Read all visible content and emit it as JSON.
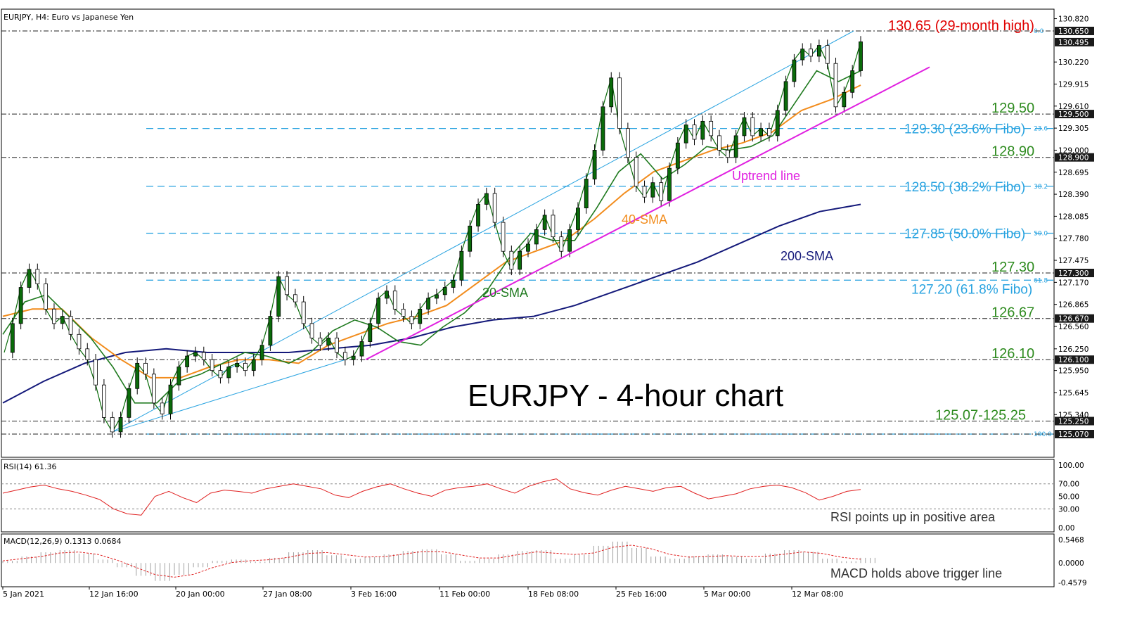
{
  "header": {
    "symbol_line": "EURJPY, H4:  Euro vs Japanese Yen",
    "chart_title": "EURJPY - 4-hour chart"
  },
  "colors": {
    "price_candle": "#0a6b0a",
    "sma20": "#1f7a1f",
    "sma40": "#f28c1c",
    "sma200": "#14197a",
    "uptrend": "#e020e0",
    "channel": "#29a3e0",
    "fibo": "#29a3e0",
    "level_label": "#2e8b1f",
    "high_label": "#e00000",
    "rsi": "#e02020",
    "macd_signal": "#e02020",
    "macd_hist": "#a0a0a0",
    "axis_text": "#000000"
  },
  "chart_data": {
    "type": "candlestick",
    "symbol": "EURJPY",
    "timeframe": "H4",
    "x_labels": [
      "5 Jan 2021",
      "12 Jan 16:00",
      "20 Jan 00:00",
      "27 Jan 08:00",
      "3 Feb 16:00",
      "11 Feb 00:00",
      "18 Feb 08:00",
      "25 Feb 16:00",
      "5 Mar 00:00",
      "12 Mar 08:00"
    ],
    "y_ticks": [
      "130.820",
      "130.220",
      "129.915",
      "129.610",
      "129.305",
      "129.000",
      "128.695",
      "128.390",
      "128.085",
      "127.780",
      "127.475",
      "127.170",
      "126.865",
      "126.560",
      "126.250",
      "125.950",
      "125.645",
      "125.340"
    ],
    "price_tags": [
      {
        "label": "130.650",
        "value": 130.65
      },
      {
        "label": "130.495",
        "value": 130.495
      },
      {
        "label": "129.500",
        "value": 129.5
      },
      {
        "label": "128.900",
        "value": 128.9
      },
      {
        "label": "127.300",
        "value": 127.3
      },
      {
        "label": "126.670",
        "value": 126.67
      },
      {
        "label": "126.100",
        "value": 126.1
      },
      {
        "label": "125.250",
        "value": 125.25
      },
      {
        "label": "125.070",
        "value": 125.07
      }
    ],
    "levels": [
      {
        "value": 130.65,
        "text": "130.65 (29-month high)",
        "kind": "high"
      },
      {
        "value": 129.5,
        "text": "129.50",
        "kind": "level"
      },
      {
        "value": 128.9,
        "text": "128.90",
        "kind": "level"
      },
      {
        "value": 127.3,
        "text": "127.30",
        "kind": "level"
      },
      {
        "value": 126.67,
        "text": "126.67",
        "kind": "level"
      },
      {
        "value": 126.1,
        "text": "126.10",
        "kind": "level"
      },
      {
        "value": 125.25,
        "text": "125.07-125.25",
        "kind": "level"
      }
    ],
    "fibo": [
      {
        "value": 130.65,
        "pct": "0.0",
        "text": ""
      },
      {
        "value": 129.3,
        "pct": "23.6",
        "text": "129.30 (23.6% Fibo)"
      },
      {
        "value": 128.5,
        "pct": "38.2",
        "text": "128.50 (38.2% Fibo)"
      },
      {
        "value": 127.85,
        "pct": "50.0",
        "text": "127.85 (50.0% Fibo)"
      },
      {
        "value": 127.2,
        "pct": "61.8",
        "text": "127.20 (61.8% Fibo)"
      },
      {
        "value": 125.07,
        "pct": "100.0",
        "text": ""
      }
    ],
    "annotations": {
      "sma20": "20-SMA",
      "sma40": "40-SMA",
      "sma200": "200-SMA",
      "uptrend": "Uptrend line"
    },
    "price_path": [
      {
        "x": 0,
        "y": 126.2
      },
      {
        "x": 1,
        "y": 126.6
      },
      {
        "x": 2,
        "y": 127.1
      },
      {
        "x": 3,
        "y": 127.35
      },
      {
        "x": 4,
        "y": 127.15
      },
      {
        "x": 5,
        "y": 126.8
      },
      {
        "x": 6,
        "y": 126.6
      },
      {
        "x": 7,
        "y": 126.7
      },
      {
        "x": 8,
        "y": 126.45
      },
      {
        "x": 9,
        "y": 126.25
      },
      {
        "x": 10,
        "y": 126.1
      },
      {
        "x": 11,
        "y": 125.75
      },
      {
        "x": 12,
        "y": 125.3
      },
      {
        "x": 13,
        "y": 125.1
      },
      {
        "x": 14,
        "y": 125.3
      },
      {
        "x": 15,
        "y": 125.7
      },
      {
        "x": 16,
        "y": 126.05
      },
      {
        "x": 17,
        "y": 125.9
      },
      {
        "x": 18,
        "y": 125.5
      },
      {
        "x": 19,
        "y": 125.35
      },
      {
        "x": 20,
        "y": 125.75
      },
      {
        "x": 21,
        "y": 126.0
      },
      {
        "x": 22,
        "y": 126.15
      },
      {
        "x": 23,
        "y": 126.2
      },
      {
        "x": 24,
        "y": 126.1
      },
      {
        "x": 25,
        "y": 125.95
      },
      {
        "x": 26,
        "y": 125.85
      },
      {
        "x": 27,
        "y": 126.0
      },
      {
        "x": 28,
        "y": 126.05
      },
      {
        "x": 29,
        "y": 125.95
      },
      {
        "x": 30,
        "y": 126.1
      },
      {
        "x": 31,
        "y": 126.3
      },
      {
        "x": 32,
        "y": 126.7
      },
      {
        "x": 33,
        "y": 127.25
      },
      {
        "x": 34,
        "y": 127.0
      },
      {
        "x": 35,
        "y": 126.9
      },
      {
        "x": 36,
        "y": 126.6
      },
      {
        "x": 37,
        "y": 126.4
      },
      {
        "x": 38,
        "y": 126.3
      },
      {
        "x": 39,
        "y": 126.4
      },
      {
        "x": 40,
        "y": 126.2
      },
      {
        "x": 41,
        "y": 126.1
      },
      {
        "x": 42,
        "y": 126.15
      },
      {
        "x": 43,
        "y": 126.35
      },
      {
        "x": 44,
        "y": 126.6
      },
      {
        "x": 45,
        "y": 126.95
      },
      {
        "x": 46,
        "y": 127.05
      },
      {
        "x": 47,
        "y": 126.8
      },
      {
        "x": 48,
        "y": 126.7
      },
      {
        "x": 49,
        "y": 126.6
      },
      {
        "x": 50,
        "y": 126.8
      },
      {
        "x": 51,
        "y": 126.95
      },
      {
        "x": 52,
        "y": 127.0
      },
      {
        "x": 53,
        "y": 127.1
      },
      {
        "x": 54,
        "y": 127.2
      },
      {
        "x": 55,
        "y": 127.6
      },
      {
        "x": 56,
        "y": 127.95
      },
      {
        "x": 57,
        "y": 128.25
      },
      {
        "x": 58,
        "y": 128.4
      },
      {
        "x": 59,
        "y": 128.0
      },
      {
        "x": 60,
        "y": 127.6
      },
      {
        "x": 61,
        "y": 127.35
      },
      {
        "x": 62,
        "y": 127.6
      },
      {
        "x": 63,
        "y": 127.7
      },
      {
        "x": 64,
        "y": 127.9
      },
      {
        "x": 65,
        "y": 128.1
      },
      {
        "x": 66,
        "y": 127.8
      },
      {
        "x": 67,
        "y": 127.6
      },
      {
        "x": 68,
        "y": 127.9
      },
      {
        "x": 69,
        "y": 128.2
      },
      {
        "x": 70,
        "y": 128.6
      },
      {
        "x": 71,
        "y": 129.0
      },
      {
        "x": 72,
        "y": 129.6
      },
      {
        "x": 73,
        "y": 130.0
      },
      {
        "x": 74,
        "y": 129.3
      },
      {
        "x": 75,
        "y": 128.9
      },
      {
        "x": 76,
        "y": 128.5
      },
      {
        "x": 77,
        "y": 128.35
      },
      {
        "x": 78,
        "y": 128.55
      },
      {
        "x": 79,
        "y": 128.3
      },
      {
        "x": 80,
        "y": 128.75
      },
      {
        "x": 81,
        "y": 129.1
      },
      {
        "x": 82,
        "y": 129.35
      },
      {
        "x": 83,
        "y": 129.15
      },
      {
        "x": 84,
        "y": 129.4
      },
      {
        "x": 85,
        "y": 129.2
      },
      {
        "x": 86,
        "y": 129.0
      },
      {
        "x": 87,
        "y": 128.9
      },
      {
        "x": 88,
        "y": 129.2
      },
      {
        "x": 89,
        "y": 129.45
      },
      {
        "x": 90,
        "y": 129.2
      },
      {
        "x": 91,
        "y": 129.3
      },
      {
        "x": 92,
        "y": 129.2
      },
      {
        "x": 93,
        "y": 129.55
      },
      {
        "x": 94,
        "y": 129.95
      },
      {
        "x": 95,
        "y": 130.25
      },
      {
        "x": 96,
        "y": 130.4
      },
      {
        "x": 97,
        "y": 130.3
      },
      {
        "x": 98,
        "y": 130.45
      },
      {
        "x": 99,
        "y": 130.2
      },
      {
        "x": 100,
        "y": 129.6
      },
      {
        "x": 101,
        "y": 129.8
      },
      {
        "x": 102,
        "y": 130.1
      },
      {
        "x": 103,
        "y": 130.5
      }
    ],
    "sma20_path": [
      126.45,
      126.9,
      127.0,
      126.7,
      126.4,
      126.0,
      125.5,
      125.5,
      125.8,
      125.9,
      126.05,
      126.2,
      126.15,
      126.05,
      126.2,
      126.5,
      126.65,
      126.55,
      126.35,
      126.3,
      126.55,
      126.75,
      127.05,
      127.5,
      127.85,
      127.75,
      127.75,
      128.2,
      128.7,
      128.95,
      128.6,
      128.8,
      129.05,
      129.0,
      129.05,
      129.2,
      129.65,
      130.1,
      129.95,
      130.1
    ],
    "sma40_path": [
      126.7,
      126.8,
      126.8,
      126.4,
      126.1,
      125.85,
      125.85,
      126.0,
      126.1,
      126.1,
      126.05,
      126.3,
      126.45,
      126.6,
      126.7,
      126.85,
      127.15,
      127.45,
      127.6,
      127.75,
      128.05,
      128.4,
      128.7,
      128.85,
      129.0,
      129.1,
      129.25,
      129.55,
      129.7,
      129.9
    ],
    "sma200_path": [
      125.5,
      125.8,
      126.05,
      126.2,
      126.25,
      126.2,
      126.2,
      126.2,
      126.25,
      126.3,
      126.4,
      126.55,
      126.65,
      126.7,
      126.85,
      127.05,
      127.25,
      127.45,
      127.7,
      127.95,
      128.15,
      128.25
    ],
    "rsi": {
      "label": "RSI(14) 61.36",
      "period": 14,
      "value": 61.36,
      "ticks": [
        "100.00",
        "70.00",
        "50.00",
        "30.00",
        "0.00"
      ],
      "path": [
        55,
        60,
        65,
        68,
        62,
        58,
        52,
        45,
        30,
        22,
        20,
        50,
        58,
        48,
        40,
        55,
        60,
        58,
        55,
        62,
        66,
        70,
        66,
        62,
        52,
        48,
        58,
        65,
        70,
        62,
        55,
        50,
        60,
        64,
        66,
        70,
        62,
        55,
        66,
        73,
        78,
        62,
        56,
        52,
        60,
        66,
        62,
        58,
        64,
        66,
        55,
        46,
        50,
        54,
        62,
        66,
        68,
        64,
        56,
        44,
        50,
        58,
        61
      ],
      "note": "RSI points up in positive area"
    },
    "macd": {
      "label": "MACD(12,26,9) 0.1313 0.0684",
      "params": [
        12,
        26,
        9
      ],
      "main": 0.1313,
      "signal": 0.0684,
      "ticks": [
        "0.5468",
        "0.0000",
        "-0.4579"
      ],
      "hist": [
        0.05,
        0.15,
        0.25,
        0.3,
        0.22,
        0.08,
        -0.1,
        -0.3,
        -0.42,
        -0.28,
        -0.1,
        0.05,
        0.08,
        0.03,
        0.12,
        0.25,
        0.3,
        0.18,
        0.1,
        0.14,
        0.2,
        0.28,
        0.32,
        0.2,
        0.05,
        0.1,
        0.2,
        0.28,
        0.3,
        0.1,
        0.2,
        0.4,
        0.5,
        0.35,
        0.15,
        0.1,
        0.16,
        0.2,
        0.15,
        0.1,
        0.22,
        0.3,
        0.26,
        0.1,
        0.04,
        0.12
      ],
      "note": "MACD holds above trigger line"
    }
  }
}
